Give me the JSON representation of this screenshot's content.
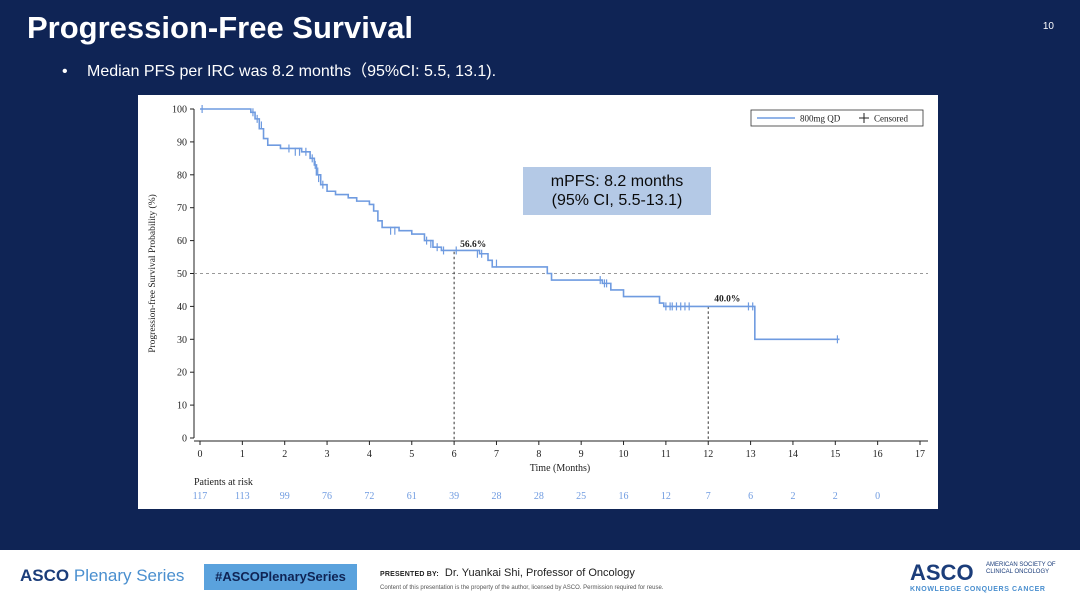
{
  "slide": {
    "title": "Progression-Free Survival",
    "number": "10",
    "bullet_dot": "•",
    "bullet": "Median PFS per IRC was 8.2 months（95%CI: 5.5, 13.1)."
  },
  "colors": {
    "background": "#0f2455",
    "curve": "#6f9be0",
    "box": "#b4c9e6",
    "risk": "#6f9be0"
  },
  "chart_data": {
    "type": "line",
    "subtype": "kaplan-meier",
    "title": "",
    "xlabel": "Time (Months)",
    "ylabel": "Progression-free Survival Probability (%)",
    "xlim": [
      0,
      17
    ],
    "ylim": [
      0,
      100
    ],
    "x_ticks": [
      0,
      1,
      2,
      3,
      4,
      5,
      6,
      7,
      8,
      9,
      10,
      11,
      12,
      13,
      14,
      15,
      16,
      17
    ],
    "y_ticks": [
      0,
      10,
      20,
      30,
      40,
      50,
      60,
      70,
      80,
      90,
      100
    ],
    "legend": {
      "placement": "top-right",
      "series_label": "800mg QD",
      "censored_label": "Censored"
    },
    "series": [
      {
        "name": "800mg QD",
        "steps": [
          [
            0,
            100
          ],
          [
            1.2,
            99
          ],
          [
            1.3,
            97
          ],
          [
            1.4,
            94
          ],
          [
            1.5,
            91
          ],
          [
            1.6,
            89
          ],
          [
            1.9,
            88
          ],
          [
            2.4,
            87
          ],
          [
            2.6,
            85
          ],
          [
            2.7,
            83
          ],
          [
            2.75,
            80
          ],
          [
            2.85,
            77
          ],
          [
            3.0,
            75
          ],
          [
            3.2,
            74
          ],
          [
            3.5,
            73
          ],
          [
            3.7,
            72
          ],
          [
            4.0,
            71
          ],
          [
            4.1,
            69
          ],
          [
            4.2,
            66
          ],
          [
            4.3,
            64
          ],
          [
            4.7,
            63
          ],
          [
            5.0,
            62
          ],
          [
            5.3,
            60
          ],
          [
            5.5,
            58
          ],
          [
            5.7,
            57
          ],
          [
            6.6,
            56
          ],
          [
            6.8,
            54
          ],
          [
            6.9,
            52
          ],
          [
            8.2,
            50
          ],
          [
            8.3,
            48
          ],
          [
            9.5,
            47
          ],
          [
            9.7,
            45
          ],
          [
            10.0,
            43
          ],
          [
            10.85,
            41
          ],
          [
            10.95,
            40
          ],
          [
            13.1,
            30
          ],
          [
            15.1,
            30
          ]
        ],
        "censored": [
          [
            0.05,
            100
          ],
          [
            1.25,
            99
          ],
          [
            1.35,
            97
          ],
          [
            1.45,
            95
          ],
          [
            2.1,
            88
          ],
          [
            2.25,
            87
          ],
          [
            2.35,
            87
          ],
          [
            2.5,
            87
          ],
          [
            2.65,
            85
          ],
          [
            2.72,
            83
          ],
          [
            2.78,
            81
          ],
          [
            2.8,
            79
          ],
          [
            2.9,
            77
          ],
          [
            4.5,
            63
          ],
          [
            4.6,
            63
          ],
          [
            5.35,
            60
          ],
          [
            5.45,
            59
          ],
          [
            5.6,
            58
          ],
          [
            5.75,
            57
          ],
          [
            6.05,
            57
          ],
          [
            6.55,
            56
          ],
          [
            6.65,
            56
          ],
          [
            7.0,
            53
          ],
          [
            9.45,
            48
          ],
          [
            9.55,
            47
          ],
          [
            9.6,
            47
          ],
          [
            11.0,
            40
          ],
          [
            11.1,
            40
          ],
          [
            11.15,
            40
          ],
          [
            11.25,
            40
          ],
          [
            11.35,
            40
          ],
          [
            11.45,
            40
          ],
          [
            11.55,
            40
          ],
          [
            12.95,
            40
          ],
          [
            13.05,
            40
          ],
          [
            15.05,
            30
          ]
        ]
      }
    ],
    "median_line_y": 50,
    "annotations": [
      {
        "x": 6,
        "y": 56.6,
        "label": "56.6%"
      },
      {
        "x": 12,
        "y": 40.0,
        "label": "40.0%"
      }
    ],
    "box_text": [
      "mPFS: 8.2 months",
      "(95% CI, 5.5-13.1)"
    ],
    "risk_table": {
      "label": "Patients at risk",
      "times": [
        0,
        1,
        2,
        3,
        4,
        5,
        6,
        7,
        8,
        9,
        10,
        11,
        12,
        13,
        14,
        15,
        16
      ],
      "values": [
        "117",
        "113",
        "99",
        "76",
        "72",
        "61",
        "39",
        "28",
        "28",
        "25",
        "16",
        "12",
        "7",
        "6",
        "2",
        "2",
        "0"
      ]
    }
  },
  "footer": {
    "plenary_asco": "ASCO",
    "plenary_series": "Plenary Series",
    "hashtag": "#ASCOPlenarySeries",
    "presented_by_label": "PRESENTED BY:",
    "presenter": "Dr. Yuankai Shi, Professor of Oncology",
    "copyright": "Content of this presentation is the property of the author, licensed by ASCO. Permission required for reuse.",
    "logo": "ASCO",
    "society": "AMERICAN SOCIETY OF CLINICAL ONCOLOGY",
    "tagline": "KNOWLEDGE CONQUERS CANCER"
  }
}
